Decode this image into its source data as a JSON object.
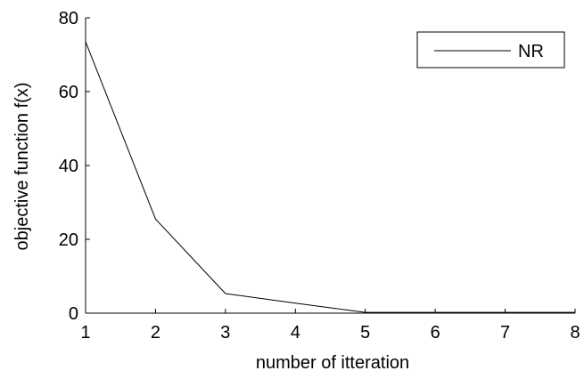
{
  "chart_data": {
    "type": "line",
    "title": "",
    "xlabel": "number of itteration",
    "ylabel": "objective function f(x)",
    "xlim": [
      1,
      8
    ],
    "ylim": [
      0,
      80
    ],
    "xticks": [
      1,
      2,
      3,
      4,
      5,
      6,
      7,
      8
    ],
    "yticks": [
      0,
      20,
      40,
      60,
      80
    ],
    "grid": false,
    "legend": {
      "position": "top-right",
      "entries": [
        "NR"
      ]
    },
    "series": [
      {
        "name": "NR",
        "color": "#000000",
        "x": [
          1,
          2,
          3,
          4,
          5,
          6,
          7,
          8
        ],
        "y": [
          73.5,
          25.5,
          5.3,
          2.7,
          0.2,
          0.2,
          0.2,
          0.2
        ]
      }
    ]
  }
}
